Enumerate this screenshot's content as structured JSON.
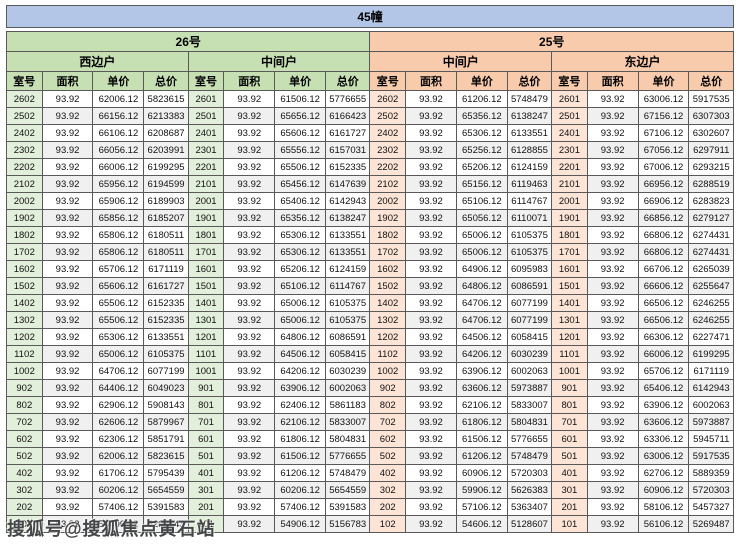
{
  "title": "45幢",
  "watermark": "搜狐号@搜狐焦点黄石站",
  "buildings": [
    {
      "name": "26号",
      "accent": "#c6e0b4",
      "room_tint": "#e2efda"
    },
    {
      "name": "25号",
      "accent": "#f8cbad",
      "room_tint": "#fce4d6"
    }
  ],
  "column_headers": [
    "室号",
    "面积",
    "单价",
    "总价"
  ],
  "groups": [
    {
      "building": "26号",
      "unit": "西边户",
      "rows": [
        [
          "2602",
          "93.92",
          "62006.12",
          "5823615"
        ],
        [
          "2502",
          "93.92",
          "66156.12",
          "6213383"
        ],
        [
          "2402",
          "93.92",
          "66106.12",
          "6208687"
        ],
        [
          "2302",
          "93.92",
          "66056.12",
          "6203991"
        ],
        [
          "2202",
          "93.92",
          "66006.12",
          "6199295"
        ],
        [
          "2102",
          "93.92",
          "65956.12",
          "6194599"
        ],
        [
          "2002",
          "93.92",
          "65906.12",
          "6189903"
        ],
        [
          "1902",
          "93.92",
          "65856.12",
          "6185207"
        ],
        [
          "1802",
          "93.92",
          "65806.12",
          "6180511"
        ],
        [
          "1702",
          "93.92",
          "65806.12",
          "6180511"
        ],
        [
          "1602",
          "93.92",
          "65706.12",
          "6171119"
        ],
        [
          "1502",
          "93.92",
          "65606.12",
          "6161727"
        ],
        [
          "1402",
          "93.92",
          "65506.12",
          "6152335"
        ],
        [
          "1302",
          "93.92",
          "65506.12",
          "6152335"
        ],
        [
          "1202",
          "93.92",
          "65306.12",
          "6133551"
        ],
        [
          "1102",
          "93.92",
          "65006.12",
          "6105375"
        ],
        [
          "1002",
          "93.92",
          "64706.12",
          "6077199"
        ],
        [
          "902",
          "93.92",
          "64406.12",
          "6049023"
        ],
        [
          "802",
          "93.92",
          "62906.12",
          "5908143"
        ],
        [
          "702",
          "93.92",
          "62606.12",
          "5879967"
        ],
        [
          "602",
          "93.92",
          "62306.12",
          "5851791"
        ],
        [
          "502",
          "93.92",
          "62006.12",
          "5823615"
        ],
        [
          "402",
          "93.92",
          "61706.12",
          "5795439"
        ],
        [
          "302",
          "93.92",
          "60206.12",
          "5654559"
        ],
        [
          "202",
          "93.92",
          "57406.12",
          "5391583"
        ],
        [
          "102",
          "93.92",
          "55406.12",
          "5203743"
        ]
      ]
    },
    {
      "building": "26号",
      "unit": "中间户",
      "rows": [
        [
          "2601",
          "93.92",
          "61506.12",
          "5776655"
        ],
        [
          "2501",
          "93.92",
          "65656.12",
          "6166423"
        ],
        [
          "2401",
          "93.92",
          "65606.12",
          "6161727"
        ],
        [
          "2301",
          "93.92",
          "65556.12",
          "6157031"
        ],
        [
          "2201",
          "93.92",
          "65506.12",
          "6152335"
        ],
        [
          "2101",
          "93.92",
          "65456.12",
          "6147639"
        ],
        [
          "2001",
          "93.92",
          "65406.12",
          "6142943"
        ],
        [
          "1901",
          "93.92",
          "65356.12",
          "6138247"
        ],
        [
          "1801",
          "93.92",
          "65306.12",
          "6133551"
        ],
        [
          "1701",
          "93.92",
          "65306.12",
          "6133551"
        ],
        [
          "1601",
          "93.92",
          "65206.12",
          "6124159"
        ],
        [
          "1501",
          "93.92",
          "65106.12",
          "6114767"
        ],
        [
          "1401",
          "93.92",
          "65006.12",
          "6105375"
        ],
        [
          "1301",
          "93.92",
          "65006.12",
          "6105375"
        ],
        [
          "1201",
          "93.92",
          "64806.12",
          "6086591"
        ],
        [
          "1101",
          "93.92",
          "64506.12",
          "6058415"
        ],
        [
          "1001",
          "93.92",
          "64206.12",
          "6030239"
        ],
        [
          "901",
          "93.92",
          "63906.12",
          "6002063"
        ],
        [
          "801",
          "93.92",
          "62406.12",
          "5861183"
        ],
        [
          "701",
          "93.92",
          "62106.12",
          "5833007"
        ],
        [
          "601",
          "93.92",
          "61806.12",
          "5804831"
        ],
        [
          "501",
          "93.92",
          "61506.12",
          "5776655"
        ],
        [
          "401",
          "93.92",
          "61206.12",
          "5748479"
        ],
        [
          "301",
          "93.92",
          "60206.12",
          "5654559"
        ],
        [
          "201",
          "93.92",
          "57406.12",
          "5391583"
        ],
        [
          "101",
          "93.92",
          "54906.12",
          "5156783"
        ]
      ]
    },
    {
      "building": "25号",
      "unit": "中间户",
      "rows": [
        [
          "2602",
          "93.92",
          "61206.12",
          "5748479"
        ],
        [
          "2502",
          "93.92",
          "65356.12",
          "6138247"
        ],
        [
          "2402",
          "93.92",
          "65306.12",
          "6133551"
        ],
        [
          "2302",
          "93.92",
          "65256.12",
          "6128855"
        ],
        [
          "2202",
          "93.92",
          "65206.12",
          "6124159"
        ],
        [
          "2102",
          "93.92",
          "65156.12",
          "6119463"
        ],
        [
          "2002",
          "93.92",
          "65106.12",
          "6114767"
        ],
        [
          "1902",
          "93.92",
          "65056.12",
          "6110071"
        ],
        [
          "1802",
          "93.92",
          "65006.12",
          "6105375"
        ],
        [
          "1702",
          "93.92",
          "65006.12",
          "6105375"
        ],
        [
          "1602",
          "93.92",
          "64906.12",
          "6095983"
        ],
        [
          "1502",
          "93.92",
          "64806.12",
          "6086591"
        ],
        [
          "1402",
          "93.92",
          "64706.12",
          "6077199"
        ],
        [
          "1302",
          "93.92",
          "64706.12",
          "6077199"
        ],
        [
          "1202",
          "93.92",
          "64506.12",
          "6058415"
        ],
        [
          "1102",
          "93.92",
          "64206.12",
          "6030239"
        ],
        [
          "1002",
          "93.92",
          "63906.12",
          "6002063"
        ],
        [
          "902",
          "93.92",
          "63606.12",
          "5973887"
        ],
        [
          "802",
          "93.92",
          "62106.12",
          "5833007"
        ],
        [
          "702",
          "93.92",
          "61806.12",
          "5804831"
        ],
        [
          "602",
          "93.92",
          "61506.12",
          "5776655"
        ],
        [
          "502",
          "93.92",
          "61206.12",
          "5748479"
        ],
        [
          "402",
          "93.92",
          "60906.12",
          "5720303"
        ],
        [
          "302",
          "93.92",
          "59906.12",
          "5626383"
        ],
        [
          "202",
          "93.92",
          "57106.12",
          "5363407"
        ],
        [
          "102",
          "93.92",
          "54606.12",
          "5128607"
        ]
      ]
    },
    {
      "building": "25号",
      "unit": "东边户",
      "rows": [
        [
          "2601",
          "93.92",
          "63006.12",
          "5917535"
        ],
        [
          "2501",
          "93.92",
          "67156.12",
          "6307303"
        ],
        [
          "2401",
          "93.92",
          "67106.12",
          "6302607"
        ],
        [
          "2301",
          "93.92",
          "67056.12",
          "6297911"
        ],
        [
          "2201",
          "93.92",
          "67006.12",
          "6293215"
        ],
        [
          "2101",
          "93.92",
          "66956.12",
          "6288519"
        ],
        [
          "2001",
          "93.92",
          "66906.12",
          "6283823"
        ],
        [
          "1901",
          "93.92",
          "66856.12",
          "6279127"
        ],
        [
          "1801",
          "93.92",
          "66806.12",
          "6274431"
        ],
        [
          "1701",
          "93.92",
          "66806.12",
          "6274431"
        ],
        [
          "1601",
          "93.92",
          "66706.12",
          "6265039"
        ],
        [
          "1501",
          "93.92",
          "66606.12",
          "6255647"
        ],
        [
          "1401",
          "93.92",
          "66506.12",
          "6246255"
        ],
        [
          "1301",
          "93.92",
          "66506.12",
          "6246255"
        ],
        [
          "1201",
          "93.92",
          "66306.12",
          "6227471"
        ],
        [
          "1101",
          "93.92",
          "66006.12",
          "6199295"
        ],
        [
          "1001",
          "93.92",
          "65706.12",
          "6171119"
        ],
        [
          "901",
          "93.92",
          "65406.12",
          "6142943"
        ],
        [
          "801",
          "93.92",
          "63906.12",
          "6002063"
        ],
        [
          "701",
          "93.92",
          "63606.12",
          "5973887"
        ],
        [
          "601",
          "93.92",
          "63306.12",
          "5945711"
        ],
        [
          "501",
          "93.92",
          "63006.12",
          "5917535"
        ],
        [
          "401",
          "93.92",
          "62706.12",
          "5889359"
        ],
        [
          "301",
          "93.92",
          "60906.12",
          "5720303"
        ],
        [
          "201",
          "93.92",
          "58106.12",
          "5457327"
        ],
        [
          "101",
          "93.92",
          "56106.12",
          "5269487"
        ]
      ]
    }
  ]
}
